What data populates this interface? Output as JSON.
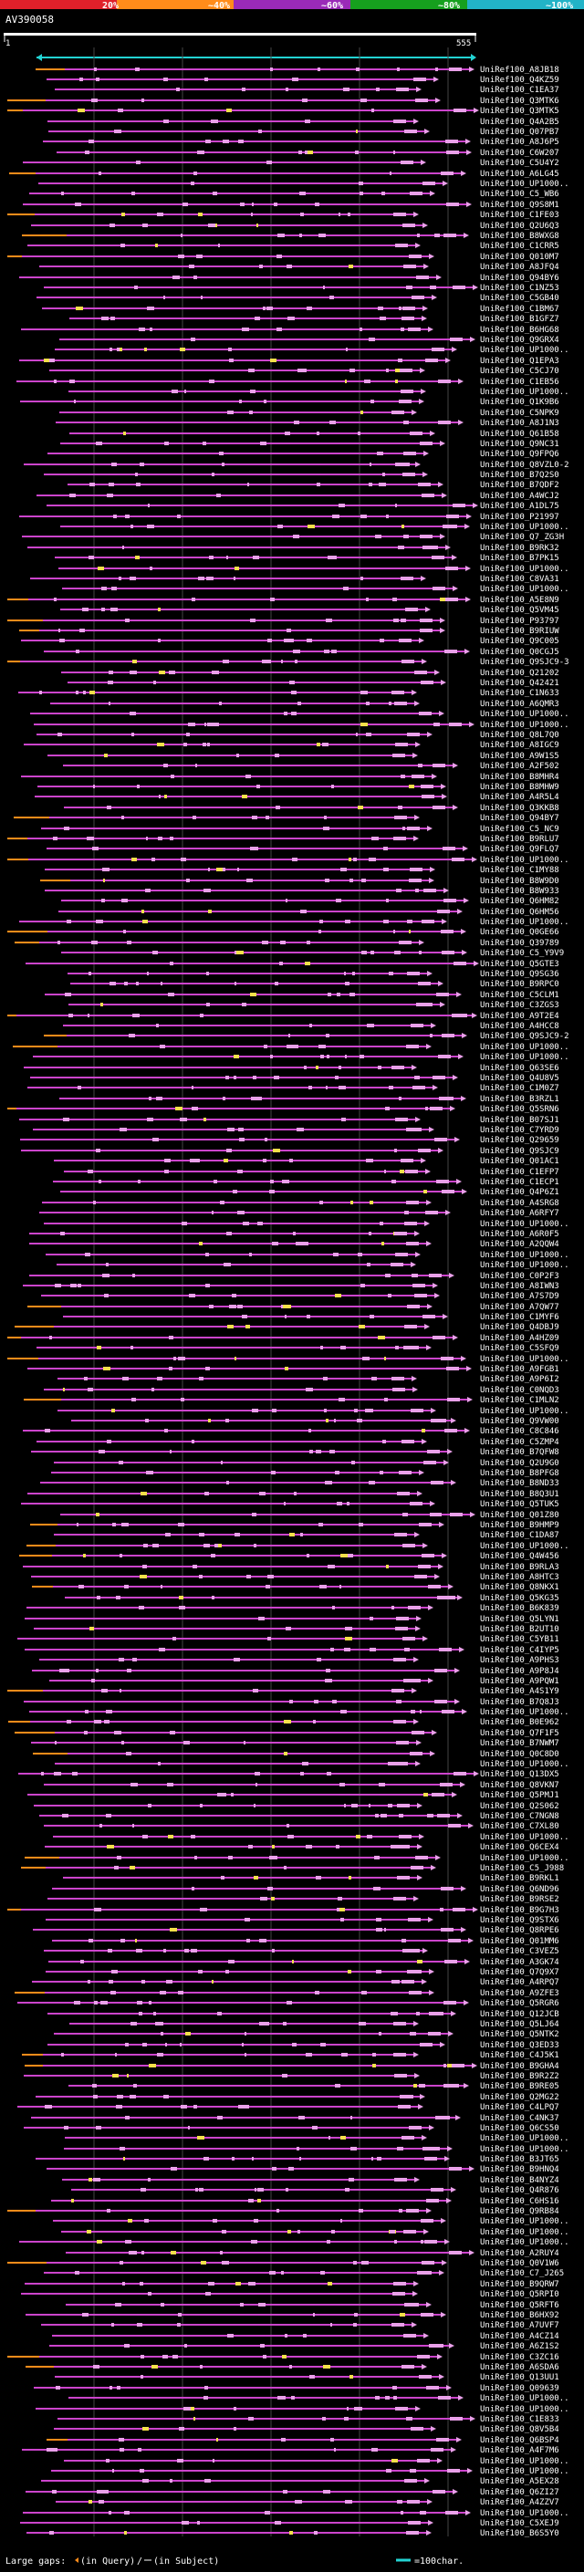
{
  "query_id": "AV390058",
  "ruler": {
    "start": "1",
    "end": "555"
  },
  "colors": {
    "identity_bar": [
      "#e0202a",
      "#ff8c1a",
      "#9a2ab8",
      "#16a01e",
      "#22b3c7"
    ],
    "hit_line": "#cc44cc",
    "hit_box": "#e9a0e9",
    "large_gap": "#ff8c1a",
    "highlight": "#f4e04a",
    "query_bar": "#22d3d3",
    "background": "#000000",
    "text": "#ffffff"
  },
  "identity_scale": [
    "20%",
    "~40%",
    "~60%",
    "~80%",
    "~100%"
  ],
  "hits": [
    "UniRef100_A8JB18",
    "UniRef100_Q4KZ59",
    "UniRef100_C1EA37",
    "UniRef100_Q3MTK6",
    "UniRef100_Q3MTK5",
    "UniRef100_Q4A2B5",
    "UniRef100_Q07PB7",
    "UniRef100_A8J6P5",
    "UniRef100_C6W207",
    "UniRef100_C5U4Y2",
    "UniRef100_A6LG45",
    "UniRef100_UP1000..",
    "UniRef100_C5_WB6",
    "UniRef100_Q9S8M1",
    "UniRef100_C1FE03",
    "UniRef100_Q2U6Q3",
    "UniRef100_B8WXG8",
    "UniRef100_C1CRR5",
    "UniRef100_Q010M7",
    "UniRef100_A8JFQ4",
    "UniRef100_Q94BY6",
    "UniRef100_C1NZ53",
    "UniRef100_C5GB40",
    "UniRef100_C1BM67",
    "UniRef100_B1GFZ7",
    "UniRef100_B6HG68",
    "UniRef100_Q9GRX4",
    "UniRef100_UP1000..",
    "UniRef100_Q1EPA3",
    "UniRef100_C5CJ70",
    "UniRef100_C1EB56",
    "UniRef100_UP1000..",
    "UniRef100_Q1K9B6",
    "UniRef100_C5NPK9",
    "UniRef100_A8J1N3",
    "UniRef100_Q61B58",
    "UniRef100_Q9NC31",
    "UniRef100_Q9FPQ6",
    "UniRef100_Q8VZL0-2",
    "UniRef100_B7Q2S0",
    "UniRef100_B7QDF2",
    "UniRef100_A4WCJ2",
    "UniRef100_A1DL75",
    "UniRef100_P21997",
    "UniRef100_UP1000..",
    "UniRef100_Q7_ZG3H",
    "UniRef100_B9RK32",
    "UniRef100_B7PK15",
    "UniRef100_UP1000..",
    "UniRef100_C8VA31",
    "UniRef100_UP1000..",
    "UniRef100_A5E8N9",
    "UniRef100_Q5VM45",
    "UniRef100_P93797",
    "UniRef100_B9RIUW",
    "UniRef100_Q9C005",
    "UniRef100_Q0CGJ5",
    "UniRef100_Q9SJC9-3",
    "UniRef100_Q21202",
    "UniRef100_Q42421",
    "UniRef100_C1N633",
    "UniRef100_A6QMR3",
    "UniRef100_UP1000..",
    "UniRef100_UP1000..",
    "UniRef100_Q8L7Q0",
    "UniRef100_A8IGC9",
    "UniRef100_A9W1S5",
    "UniRef100_A2F502",
    "UniRef100_B8MHR4",
    "UniRef100_B8MHW9",
    "UniRef100_A4R5L4",
    "UniRef100_Q3KKB8",
    "UniRef100_Q94BY7",
    "UniRef100_C5_NC9",
    "UniRef100_B9RLU7",
    "UniRef100_Q9FLQ7",
    "UniRef100_UP1000..",
    "UniRef100_C1MY88",
    "UniRef100_B8W9D0",
    "UniRef100_B8W933",
    "UniRef100_Q6HM82",
    "UniRef100_Q6HM56",
    "UniRef100_UP1000..",
    "UniRef100_Q0GE66",
    "UniRef100_Q39789",
    "UniRef100_C5_Y9V9",
    "UniRef100_Q5GTE3",
    "UniRef100_Q9SG36",
    "UniRef100_B9RPC0",
    "UniRef100_C5CLM1",
    "UniRef100_C3ZGS3",
    "UniRef100_A9T2E4",
    "UniRef100_A4HCC8",
    "UniRef100_Q9SJC9-2",
    "UniRef100_UP1000..",
    "UniRef100_UP1000..",
    "UniRef100_Q63SE6",
    "UniRef100_Q4U8V5",
    "UniRef100_C1M0Z7",
    "UniRef100_B3RZL1",
    "UniRef100_Q5SRN6",
    "UniRef100_B07SJ1",
    "UniRef100_C7YRD9",
    "UniRef100_Q29659",
    "UniRef100_Q9SJC9",
    "UniRef100_Q01AC1",
    "UniRef100_C1EFP7",
    "UniRef100_C1ECP1",
    "UniRef100_Q4P6Z1",
    "UniRef100_A4SRG8",
    "UniRef100_A6RFY7",
    "UniRef100_UP1000..",
    "UniRef100_A6R0F5",
    "UniRef100_A2QQW4",
    "UniRef100_UP1000..",
    "UniRef100_UP1000..",
    "UniRef100_C0P2F3",
    "UniRef100_A8IWN3",
    "UniRef100_A7S7D9",
    "UniRef100_A7QW77",
    "UniRef100_C1MYF6",
    "UniRef100_Q4DBJ9",
    "UniRef100_A4HZ09",
    "UniRef100_C5SFQ9",
    "UniRef100_UP1000..",
    "UniRef100_A9FGB1",
    "UniRef100_A9P6I2",
    "UniRef100_C0NQD3",
    "UniRef100_C1MLN2",
    "UniRef100_UP1000..",
    "UniRef100_Q9VW00",
    "UniRef100_C8C846",
    "UniRef100_C5ZMP4",
    "UniRef100_B7QFW8",
    "UniRef100_Q2U9G0",
    "UniRef100_B8PFG8",
    "UniRef100_B8ND33",
    "UniRef100_B8Q3U1",
    "UniRef100_Q5TUK5",
    "UniRef100_Q01Z80",
    "UniRef100_B9HMP9",
    "UniRef100_C1DA87",
    "UniRef100_UP1000..",
    "UniRef100_Q4W456",
    "UniRef100_B9RLA3",
    "UniRef100_A8HTC3",
    "UniRef100_Q8NKX1",
    "UniRef100_Q5KG35",
    "UniRef100_B6K839",
    "UniRef100_Q5LYN1",
    "UniRef100_B2UT10",
    "UniRef100_C5YB11",
    "UniRef100_C4IYP5",
    "UniRef100_A9PHS3",
    "UniRef100_A9P8J4",
    "UniRef100_A9PQW1",
    "UniRef100_A4S1Y9",
    "UniRef100_B7Q8J3",
    "UniRef100_UP1000..",
    "UniRef100_B0E962",
    "UniRef100_Q7F1F5",
    "UniRef100_B7NWM7",
    "UniRef100_Q0C8D0",
    "UniRef100_UP1000..",
    "UniRef100_Q13DX5",
    "UniRef100_Q8VKN7",
    "UniRef100_Q5PMJ1",
    "UniRef100_Q2S062",
    "UniRef100_C7NGN8",
    "UniRef100_C7XL80",
    "UniRef100_UP1000..",
    "UniRef100_Q6CEX4",
    "UniRef100_UP1000..",
    "UniRef100_C5_J988",
    "UniRef100_B9RKL1",
    "UniRef100_Q6ND96",
    "UniRef100_B9RSE2",
    "UniRef100_B9G7H3",
    "UniRef100_Q9STX6",
    "UniRef100_Q8RPE6",
    "UniRef100_Q01MM6",
    "UniRef100_C3VEZ5",
    "UniRef100_A3GK74",
    "UniRef100_Q7Q9X7",
    "UniRef100_A4RPQ7",
    "UniRef100_A9ZFE3",
    "UniRef100_Q5RGR6",
    "UniRef100_Q12JCB",
    "UniRef100_Q5LJ64",
    "UniRef100_Q5NTK2",
    "UniRef100_Q3ED33",
    "UniRef100_C4J5K1",
    "UniRef100_B9GHA4",
    "UniRef100_B9R2Z2",
    "UniRef100_B9RE05",
    "UniRef100_Q2MG22",
    "UniRef100_C4LPQ7",
    "UniRef100_C4NK37",
    "UniRef100_Q6CS50",
    "UniRef100_UP1000..",
    "UniRef100_UP1000..",
    "UniRef100_B3JT65",
    "UniRef100_B9HNQ4",
    "UniRef100_B4NYZ4",
    "UniRef100_Q4R876",
    "UniRef100_C6HS16",
    "UniRef100_Q9RB84",
    "UniRef100_UP1000..",
    "UniRef100_UP1000..",
    "UniRef100_UP1000..",
    "UniRef100_A2RUY4",
    "UniRef100_Q0V1W6",
    "UniRef100_C7_J265",
    "UniRef100_B9QRW7",
    "UniRef100_Q5RPI0",
    "UniRef100_Q5RFT6",
    "UniRef100_B6HX92",
    "UniRef100_A7UVF7",
    "UniRef100_A4CZ14",
    "UniRef100_A6Z1S2",
    "UniRef100_C3ZC16",
    "UniRef100_A6SDA6",
    "UniRef100_Q13UU1",
    "UniRef100_Q09639",
    "UniRef100_UP1000..",
    "UniRef100_UP1000..",
    "UniRef100_C1E833",
    "UniRef100_Q8V5B4",
    "UniRef100_Q6BSP4",
    "UniRef100_A4F7M6",
    "UniRef100_UP1000..",
    "UniRef100_UP1000..",
    "UniRef100_A5EX28",
    "UniRef100_Q6ZI27",
    "UniRef100_A4ZZV7",
    "UniRef100_UP1000..",
    "UniRef100_C5XEJ9",
    "UniRef100_B6S5Y0"
  ],
  "legend": {
    "large_gaps_label": "Large gaps:",
    "in_query_label": "(in Query)",
    "in_subject_label": "(in Subject)",
    "scale_label": "=100char."
  }
}
